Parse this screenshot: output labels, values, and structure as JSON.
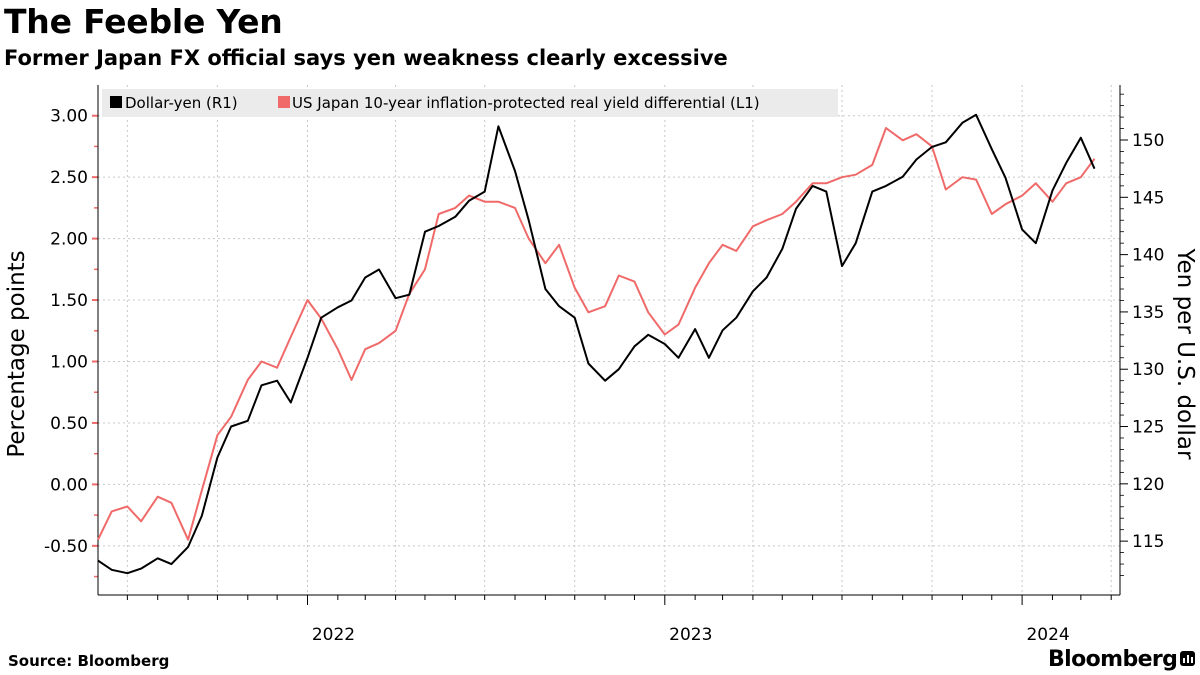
{
  "header": {
    "title": "The Feeble Yen",
    "subtitle": "Former Japan FX official says yen weakness clearly excessive"
  },
  "footer": {
    "source": "Source: Bloomberg",
    "brand": "Bloomberg"
  },
  "icons": {
    "brand_icon": "bar-chart-icon"
  },
  "colors": {
    "dollar_yen": "#000000",
    "real_yield_diff": "#f06a6a",
    "legend_bg": "#ebebeb",
    "grid": "#c8c8c8"
  },
  "chart_data": {
    "type": "line",
    "legend_position": "top-left",
    "grid": true,
    "ylabel_left": "Percentage points",
    "ylabel_right": "Yen per U.S. dollar",
    "ylim_left": [
      -0.9,
      3.25
    ],
    "ylim_right": [
      110.3,
      154.8
    ],
    "yticks_left": [
      "3.00",
      "2.50",
      "2.00",
      "1.50",
      "1.00",
      "0.50",
      "0.00",
      "-0.50"
    ],
    "yticks_right": [
      "150",
      "145",
      "140",
      "135",
      "130",
      "125",
      "120",
      "115"
    ],
    "x_labels": [
      {
        "label": "2022",
        "date": "2022-01-01"
      },
      {
        "label": "2023",
        "date": "2023-01-01"
      },
      {
        "label": "2024",
        "date": "2024-01-01"
      }
    ],
    "xlim": [
      "2021-06-01",
      "2024-04-10"
    ],
    "series": [
      {
        "name": "Dollar-yen (R1)",
        "axis": "right",
        "color": "#000000",
        "x": [
          "2021-06-01",
          "2021-06-15",
          "2021-07-01",
          "2021-07-15",
          "2021-08-01",
          "2021-08-15",
          "2021-09-01",
          "2021-09-15",
          "2021-10-01",
          "2021-10-15",
          "2021-11-01",
          "2021-11-15",
          "2021-12-01",
          "2021-12-15",
          "2022-01-01",
          "2022-01-15",
          "2022-02-01",
          "2022-02-15",
          "2022-03-01",
          "2022-03-15",
          "2022-04-01",
          "2022-04-15",
          "2022-05-01",
          "2022-05-15",
          "2022-06-01",
          "2022-06-15",
          "2022-07-01",
          "2022-07-15",
          "2022-08-01",
          "2022-08-15",
          "2022-09-01",
          "2022-09-15",
          "2022-10-01",
          "2022-10-15",
          "2022-11-01",
          "2022-11-15",
          "2022-12-01",
          "2022-12-15",
          "2023-01-01",
          "2023-01-15",
          "2023-02-01",
          "2023-02-15",
          "2023-03-01",
          "2023-03-15",
          "2023-04-01",
          "2023-04-15",
          "2023-05-01",
          "2023-05-15",
          "2023-06-01",
          "2023-06-15",
          "2023-07-01",
          "2023-07-15",
          "2023-08-01",
          "2023-08-15",
          "2023-09-01",
          "2023-09-15",
          "2023-10-01",
          "2023-10-15",
          "2023-11-01",
          "2023-11-15",
          "2023-12-01",
          "2023-12-15",
          "2024-01-01",
          "2024-01-15",
          "2024-02-01",
          "2024-02-15",
          "2024-03-01",
          "2024-03-15"
        ],
        "values": [
          113.3,
          112.5,
          112.2,
          112.6,
          113.5,
          113.0,
          114.5,
          117.2,
          122.3,
          125.0,
          125.5,
          128.6,
          129.0,
          127.1,
          131.0,
          134.5,
          135.4,
          136.0,
          138.0,
          138.7,
          136.2,
          136.5,
          142.0,
          142.5,
          143.3,
          144.7,
          145.5,
          151.2,
          147.3,
          143.0,
          137.0,
          135.5,
          134.5,
          130.5,
          129.0,
          130.0,
          132.0,
          133.0,
          132.2,
          131.0,
          133.5,
          131.0,
          133.4,
          134.5,
          136.8,
          138.0,
          140.5,
          144.0,
          146.0,
          145.5,
          139.0,
          141.0,
          145.5,
          146.0,
          146.8,
          148.3,
          149.4,
          149.8,
          151.5,
          152.2,
          149.2,
          146.7,
          142.2,
          141.0,
          145.6,
          148.0,
          150.2,
          147.5
        ]
      },
      {
        "name": "US Japan 10-year inflation-protected real yield differential (L1)",
        "axis": "left",
        "color": "#f06a6a",
        "x": [
          "2021-06-01",
          "2021-06-15",
          "2021-07-01",
          "2021-07-15",
          "2021-08-01",
          "2021-08-15",
          "2021-09-01",
          "2021-09-15",
          "2021-10-01",
          "2021-10-15",
          "2021-11-01",
          "2021-11-15",
          "2021-12-01",
          "2021-12-15",
          "2022-01-01",
          "2022-01-15",
          "2022-02-01",
          "2022-02-15",
          "2022-03-01",
          "2022-03-15",
          "2022-04-01",
          "2022-04-15",
          "2022-05-01",
          "2022-05-15",
          "2022-06-01",
          "2022-06-15",
          "2022-07-01",
          "2022-07-15",
          "2022-08-01",
          "2022-08-15",
          "2022-09-01",
          "2022-09-15",
          "2022-10-01",
          "2022-10-15",
          "2022-11-01",
          "2022-11-15",
          "2022-12-01",
          "2022-12-15",
          "2023-01-01",
          "2023-01-15",
          "2023-02-01",
          "2023-02-15",
          "2023-03-01",
          "2023-03-15",
          "2023-04-01",
          "2023-04-15",
          "2023-05-01",
          "2023-05-15",
          "2023-06-01",
          "2023-06-15",
          "2023-07-01",
          "2023-07-15",
          "2023-08-01",
          "2023-08-15",
          "2023-09-01",
          "2023-09-15",
          "2023-10-01",
          "2023-10-15",
          "2023-11-01",
          "2023-11-15",
          "2023-12-01",
          "2023-12-15",
          "2024-01-01",
          "2024-01-15",
          "2024-02-01",
          "2024-02-15",
          "2024-03-01",
          "2024-03-15"
        ],
        "values": [
          -0.45,
          -0.22,
          -0.18,
          -0.3,
          -0.1,
          -0.15,
          -0.45,
          -0.05,
          0.4,
          0.55,
          0.85,
          1.0,
          0.95,
          1.2,
          1.5,
          1.35,
          1.1,
          0.85,
          1.1,
          1.15,
          1.25,
          1.55,
          1.75,
          2.2,
          2.25,
          2.35,
          2.3,
          2.3,
          2.25,
          2.0,
          1.8,
          1.95,
          1.6,
          1.4,
          1.45,
          1.7,
          1.65,
          1.4,
          1.22,
          1.3,
          1.6,
          1.8,
          1.95,
          1.9,
          2.1,
          2.15,
          2.2,
          2.3,
          2.45,
          2.45,
          2.5,
          2.52,
          2.6,
          2.9,
          2.8,
          2.85,
          2.75,
          2.4,
          2.5,
          2.48,
          2.2,
          2.28,
          2.35,
          2.45,
          2.3,
          2.45,
          2.5,
          2.65
        ]
      }
    ]
  }
}
